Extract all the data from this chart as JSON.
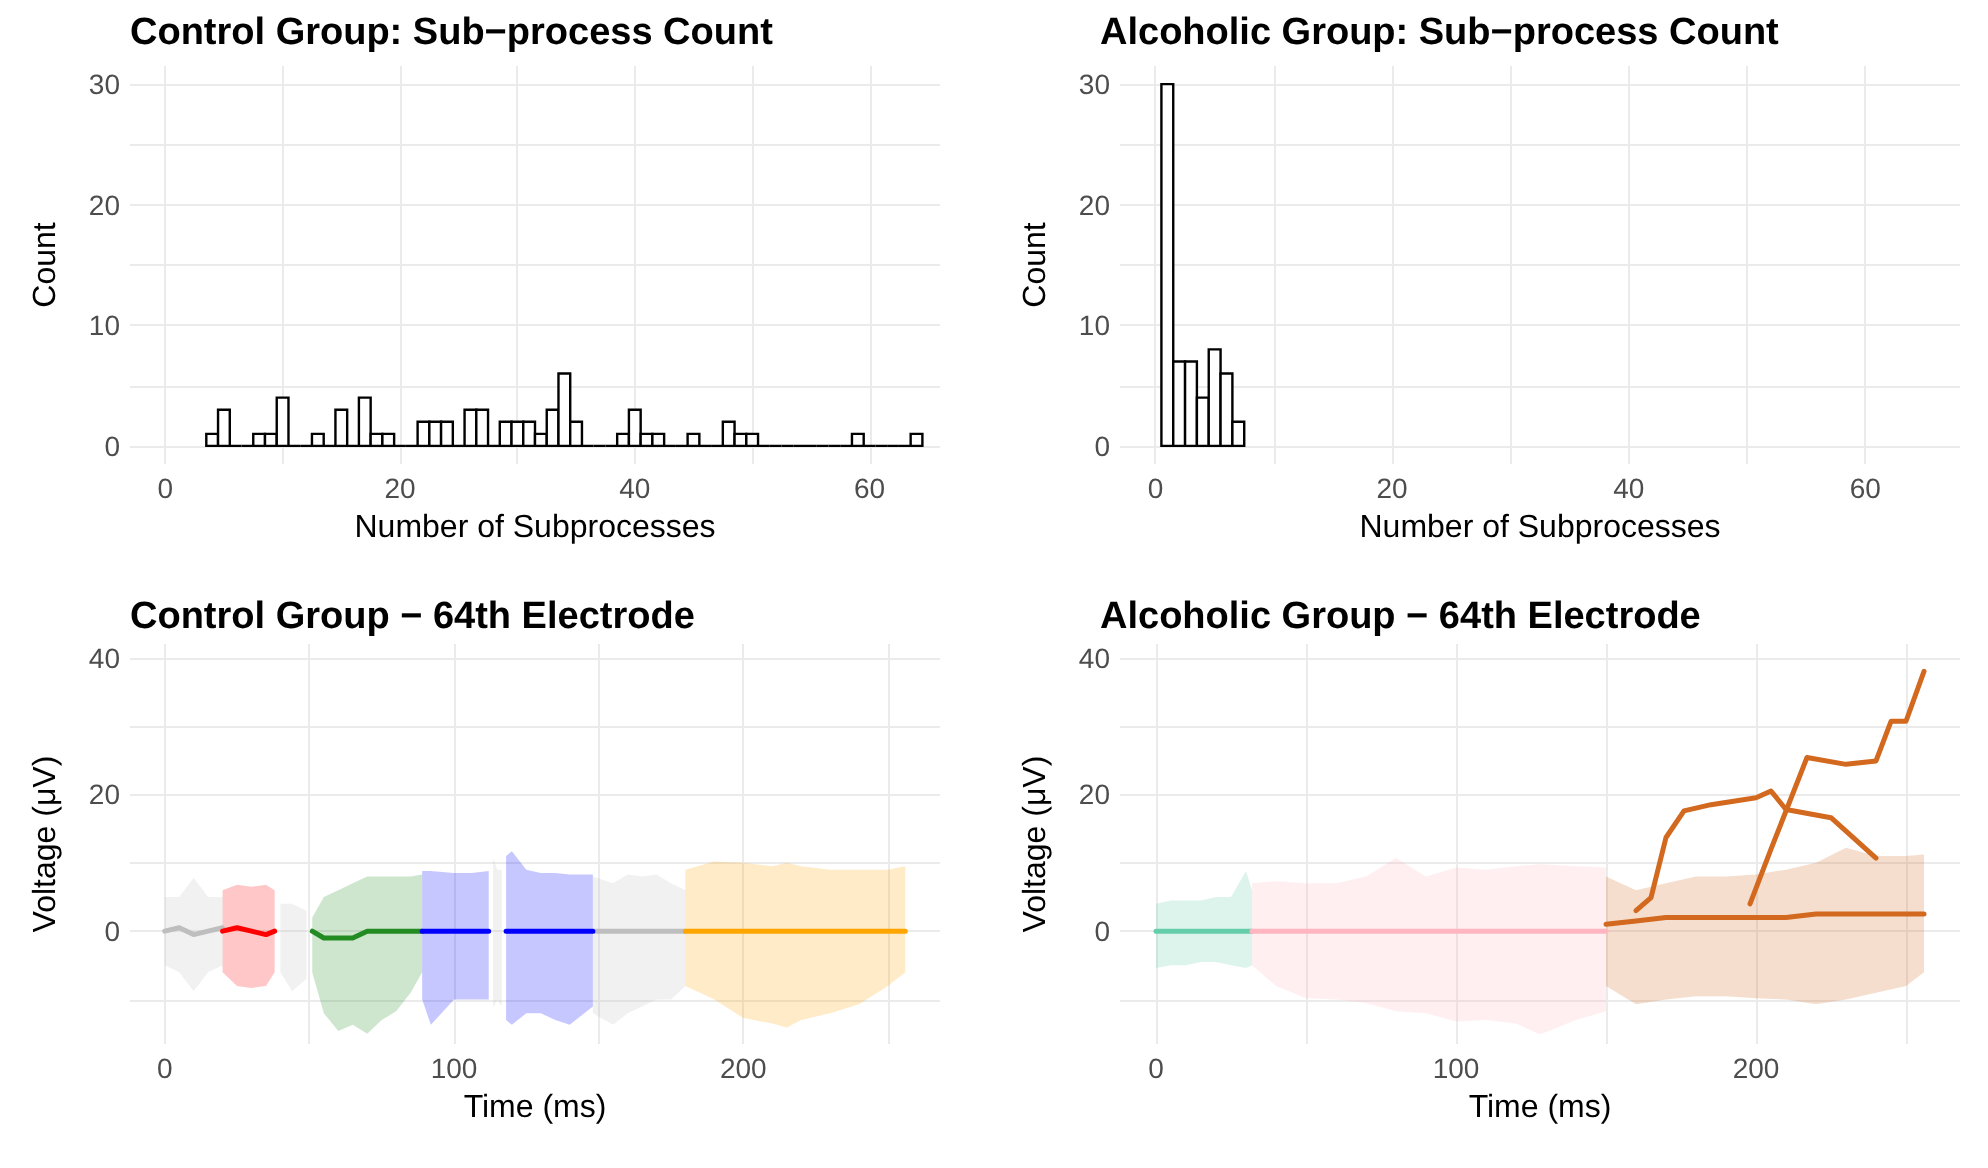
{
  "chart_data": [
    {
      "type": "histogram",
      "title": "Control Group: Sub−process Count",
      "xlabel": "Number of Subprocesses",
      "ylabel": "Count",
      "color": "#000000",
      "bins": [
        3.5,
        4.5,
        5.5,
        6.5,
        7.5,
        8.5,
        9.5,
        10.5,
        11.5,
        12.5,
        13.5,
        14.5,
        15.5,
        16.5,
        17.5,
        18.5,
        19.5,
        20.5,
        21.5,
        22.5,
        23.5,
        24.5,
        25.5,
        26.5,
        27.5,
        28.5,
        29.5,
        30.5,
        31.5,
        32.5,
        33.5,
        34.5,
        35.5,
        36.5,
        37.5,
        38.5,
        39.5,
        40.5,
        41.5,
        42.5,
        43.5,
        44.5,
        45.5,
        46.5,
        47.5,
        48.5,
        49.5,
        50.5,
        51.5,
        52.5,
        53.5,
        54.5,
        55.5,
        56.5,
        57.5,
        58.5,
        59.5,
        60.5,
        61.5,
        62.5,
        63.5,
        64.5
      ],
      "values": [
        1,
        3,
        0,
        0,
        1,
        1,
        4,
        0,
        0,
        1,
        0,
        3,
        0,
        4,
        1,
        1,
        0,
        0,
        2,
        2,
        2,
        0,
        3,
        3,
        0,
        2,
        2,
        2,
        1,
        3,
        6,
        2,
        0,
        0,
        0,
        1,
        3,
        1,
        1,
        0,
        0,
        1,
        0,
        0,
        2,
        1,
        1,
        0,
        0,
        0,
        0,
        0,
        0,
        0,
        0,
        1,
        0,
        0,
        0,
        0,
        1
      ],
      "xlim": [
        -3,
        66
      ],
      "xticks": [
        0,
        20,
        40,
        60
      ],
      "ylim": [
        -1.5,
        31.5
      ],
      "yticks": [
        0,
        10,
        20,
        30
      ],
      "grid": true
    },
    {
      "type": "histogram",
      "title": "Alcoholic Group: Sub−process Count",
      "xlabel": "Number of Subprocesses",
      "ylabel": "Count",
      "color": "#000000",
      "bins": [
        0.5,
        1.5,
        2.5,
        3.5,
        4.5,
        5.5,
        6.5,
        7.5
      ],
      "values": [
        30,
        7,
        7,
        4,
        8,
        6,
        2
      ],
      "xlim": [
        -3,
        68
      ],
      "xticks": [
        0,
        20,
        40,
        60
      ],
      "ylim": [
        -1.5,
        31.5
      ],
      "yticks": [
        0,
        10,
        20,
        30
      ],
      "grid": true
    },
    {
      "type": "line",
      "title": "Control Group − 64th Electrode",
      "xlabel": "Time (ms)",
      "ylabel": "Voltage (μV)",
      "xlim": [
        -12,
        268
      ],
      "xticks": [
        0,
        100,
        200
      ],
      "ylim": [
        -16.5,
        42
      ],
      "yticks": [
        0,
        20,
        40
      ],
      "grid": true,
      "series": [
        {
          "color": "#bebebe",
          "x": [
            0,
            5,
            10,
            15,
            20,
            29,
            40,
            44,
            49,
            80,
            113.5,
            115,
            116.5,
            133,
            148,
            155,
            160,
            165,
            170,
            175,
            180
          ],
          "values": [
            0,
            0.5,
            -0.5,
            0,
            0.5,
            null,
            null,
            null,
            null,
            null,
            null,
            null,
            null,
            null,
            0,
            0,
            0,
            0,
            0,
            0,
            0
          ],
          "lower": [
            -5,
            -6,
            -8.8,
            -6,
            -5,
            null,
            -6,
            -8.8,
            -7,
            null,
            -11.2,
            -10,
            -11,
            null,
            -12,
            -13.7,
            -12,
            -11,
            -10,
            -10,
            -8
          ],
          "upper": [
            5,
            5,
            7.8,
            5,
            5,
            null,
            4,
            4,
            3,
            null,
            10.7,
            9,
            9,
            null,
            8,
            7,
            8.3,
            8,
            8.3,
            7,
            6
          ]
        },
        {
          "color": "#ff0000",
          "x": [
            20,
            25,
            30,
            35,
            38
          ],
          "values": [
            0,
            0.5,
            0,
            -0.5,
            0
          ],
          "lower": [
            -6,
            -8,
            -8.3,
            -8,
            -6
          ],
          "upper": [
            6,
            6.8,
            6.5,
            6.8,
            6
          ]
        },
        {
          "color": "#228b22",
          "x": [
            51,
            55,
            60,
            65,
            70,
            75,
            80,
            85,
            89
          ],
          "values": [
            0,
            -1,
            -1,
            -1,
            0,
            0,
            0,
            0,
            0
          ],
          "lower": [
            -6,
            -12,
            -14.6,
            -13.7,
            -15,
            -13,
            -11.7,
            -9,
            -6
          ],
          "upper": [
            2,
            5,
            6,
            7,
            8,
            8,
            8,
            8,
            8.3
          ]
        },
        {
          "color": "#0000ff",
          "x": [
            89,
            92,
            100,
            106,
            112,
            115,
            118,
            120,
            125,
            130,
            135,
            140,
            148
          ],
          "values": [
            0,
            0,
            0,
            0,
            0,
            null,
            0,
            0,
            0,
            0,
            0,
            0,
            0
          ],
          "lower": [
            -10,
            -13.7,
            -10,
            -10,
            -10,
            null,
            -13,
            -13.7,
            -12,
            -12,
            -13,
            -13.7,
            -11
          ],
          "upper": [
            8.8,
            8.8,
            8.5,
            8.5,
            8.8,
            null,
            11,
            11.7,
            9,
            8.5,
            8.5,
            8.3,
            8.3
          ]
        },
        {
          "color": "#ffa500",
          "x": [
            180,
            190,
            200,
            210,
            215,
            220,
            230,
            240,
            250,
            256
          ],
          "values": [
            0,
            0,
            0,
            0,
            0,
            0,
            0,
            0,
            0,
            0
          ],
          "lower": [
            -8,
            -10,
            -12.7,
            -13.5,
            -14.1,
            -13,
            -12,
            -10.7,
            -8,
            -6
          ],
          "upper": [
            9,
            10.2,
            10,
            9.5,
            10,
            9.5,
            9,
            9,
            9,
            9.5
          ]
        }
      ]
    },
    {
      "type": "line",
      "title": "Alcoholic Group − 64th Electrode",
      "xlabel": "Time (ms)",
      "ylabel": "Voltage (μV)",
      "xlim": [
        -12,
        268
      ],
      "xticks": [
        0,
        100,
        200
      ],
      "ylim": [
        -16.5,
        42
      ],
      "yticks": [
        0,
        20,
        40
      ],
      "grid": true,
      "series": [
        {
          "color": "#66cdaa",
          "x": [
            0,
            5,
            10,
            15,
            20,
            25,
            30,
            32
          ],
          "values": [
            0,
            0,
            0,
            0,
            0,
            0,
            0,
            0
          ],
          "lower": [
            -5.4,
            -5,
            -5,
            -4.5,
            -4.5,
            -5,
            -5.4,
            -5
          ],
          "upper": [
            4,
            4.5,
            4.5,
            4.5,
            5,
            5,
            8.8,
            6
          ]
        },
        {
          "color": "#ffb6c1",
          "x": [
            32,
            40,
            50,
            60,
            70,
            80,
            90,
            100,
            110,
            120,
            128,
            140,
            150
          ],
          "values": [
            0,
            0,
            0,
            0,
            0,
            0,
            0,
            0,
            0,
            0,
            0,
            0,
            0
          ],
          "lower": [
            -5,
            -8,
            -9.8,
            -10,
            -10.5,
            -11.7,
            -12,
            -13.2,
            -13,
            -13.5,
            -15.1,
            -13,
            -11.7
          ],
          "upper": [
            7,
            7.3,
            7,
            7,
            8,
            10.7,
            8,
            9.3,
            9,
            9.5,
            9.8,
            9.5,
            9.3
          ]
        },
        {
          "color": "#d2691e",
          "x": [
            150,
            160,
            170,
            180,
            190,
            200,
            210,
            220,
            230,
            240,
            250,
            256
          ],
          "values": [
            1,
            1.5,
            2,
            2,
            2,
            2,
            2,
            2.5,
            2.5,
            2.5,
            2.5,
            2.5
          ],
          "lower": [
            -8,
            -10.7,
            -10,
            -9.5,
            -9.5,
            -9.8,
            -10,
            -10.7,
            -10,
            -9,
            -8,
            -6
          ],
          "upper": [
            8,
            6,
            7,
            8,
            8,
            8.3,
            9,
            10,
            12.2,
            11,
            11,
            11.2
          ]
        },
        {
          "color": "#d2691e",
          "x": [
            160,
            165,
            170,
            176,
            185,
            200,
            205,
            210,
            225,
            240
          ],
          "values": [
            3,
            4.9,
            13.7,
            17.6,
            18.5,
            19.5,
            20.5,
            17.8,
            16.6,
            10.7
          ]
        },
        {
          "color": "#d2691e",
          "x": [
            198,
            205,
            217,
            230,
            240,
            245,
            250,
            256
          ],
          "values": [
            4,
            12,
            25.4,
            24.4,
            24.9,
            30.7,
            30.7,
            38
          ]
        }
      ]
    }
  ]
}
